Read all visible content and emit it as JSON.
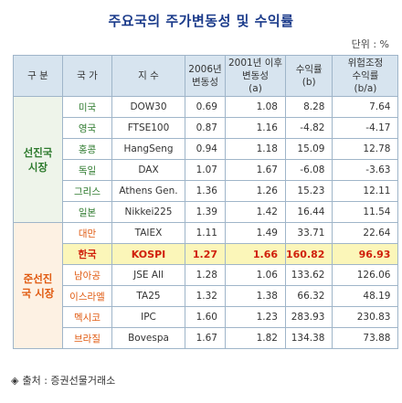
{
  "title": "주요국의 주가변동성 및 수익률",
  "unit": "단위 : %",
  "headers": {
    "group": "구 분",
    "country": "국 가",
    "index": "지 수",
    "vol2006_l1": "2006년",
    "vol2006_l2": "변동성",
    "vol2001_l1": "2001년 이후",
    "vol2001_l2": "변동성",
    "vol2001_l3": "(a)",
    "ret_l1": "수익률",
    "ret_l2": "(b)",
    "risk_l1": "위험조정",
    "risk_l2": "수익률",
    "risk_l3": "(b/a)"
  },
  "groups": {
    "developed": "선진국 시장",
    "emerging": "준선진국 시장"
  },
  "rows": [
    {
      "country": "미국",
      "index": "DOW30",
      "v2006": "0.69",
      "v2001": "1.08",
      "ret": "8.28",
      "risk": "7.64"
    },
    {
      "country": "영국",
      "index": "FTSE100",
      "v2006": "0.87",
      "v2001": "1.16",
      "ret": "-4.82",
      "risk": "-4.17"
    },
    {
      "country": "홍콩",
      "index": "HangSeng",
      "v2006": "0.94",
      "v2001": "1.18",
      "ret": "15.09",
      "risk": "12.78"
    },
    {
      "country": "독일",
      "index": "DAX",
      "v2006": "1.07",
      "v2001": "1.67",
      "ret": "-6.08",
      "risk": "-3.63"
    },
    {
      "country": "그리스",
      "index": "Athens Gen.",
      "v2006": "1.36",
      "v2001": "1.26",
      "ret": "15.23",
      "risk": "12.11"
    },
    {
      "country": "일본",
      "index": "Nikkei225",
      "v2006": "1.39",
      "v2001": "1.42",
      "ret": "16.44",
      "risk": "11.54"
    },
    {
      "country": "대만",
      "index": "TAIEX",
      "v2006": "1.11",
      "v2001": "1.49",
      "ret": "33.71",
      "risk": "22.64"
    },
    {
      "country": "한국",
      "index": "KOSPI",
      "v2006": "1.27",
      "v2001": "1.66",
      "ret": "160.82",
      "risk": "96.93"
    },
    {
      "country": "남아공",
      "index": "JSE All",
      "v2006": "1.28",
      "v2001": "1.06",
      "ret": "133.62",
      "risk": "126.06"
    },
    {
      "country": "이스라엘",
      "index": "TA25",
      "v2006": "1.32",
      "v2001": "1.38",
      "ret": "66.32",
      "risk": "48.19"
    },
    {
      "country": "멕시코",
      "index": "IPC",
      "v2006": "1.60",
      "v2001": "1.23",
      "ret": "283.93",
      "risk": "230.83"
    },
    {
      "country": "브라질",
      "index": "Bovespa",
      "v2006": "1.67",
      "v2001": "1.82",
      "ret": "134.38",
      "risk": "73.88"
    }
  ],
  "footer": "출처 : 증권선물거래소",
  "colors": {
    "header_bg": "#d7e4ef",
    "developed": "#2d7a2d",
    "emerging": "#e05a10",
    "highlight_bg": "#fbf6b9",
    "highlight_text": "#d0200c"
  }
}
